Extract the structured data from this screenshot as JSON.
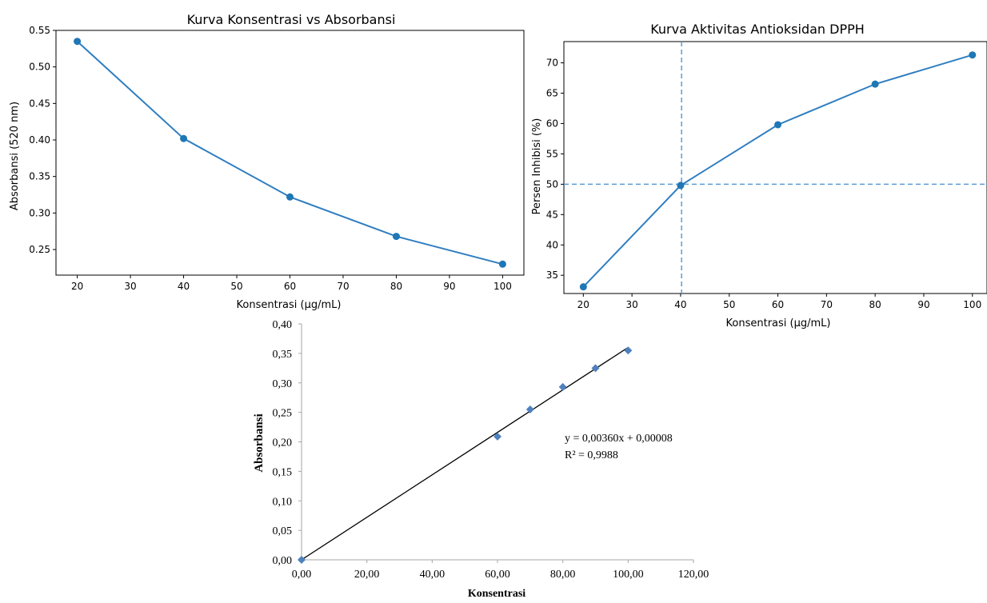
{
  "chart_data": [
    {
      "type": "line",
      "title": "Kurva Konsentrasi vs Absorbansi",
      "xlabel": "Konsentrasi (µg/mL)",
      "ylabel": "Absorbansi (520 nm)",
      "xlim": [
        16,
        104
      ],
      "ylim": [
        0.215,
        0.55
      ],
      "xticks": [
        20,
        30,
        40,
        50,
        60,
        70,
        80,
        90,
        100
      ],
      "yticks": [
        0.25,
        0.3,
        0.35,
        0.4,
        0.45,
        0.5,
        0.55
      ],
      "xtick_labels": [
        "20",
        "30",
        "40",
        "50",
        "60",
        "70",
        "80",
        "90",
        "100"
      ],
      "ytick_labels": [
        "0.25",
        "0.30",
        "0.35",
        "0.40",
        "0.45",
        "0.50",
        "0.55"
      ],
      "grid": false,
      "color": "#2f7ec1",
      "marker_color": "#1f77b4",
      "x": [
        20,
        40,
        60,
        80,
        100
      ],
      "y": [
        0.535,
        0.402,
        0.322,
        0.268,
        0.23
      ]
    },
    {
      "type": "line",
      "title": "Kurva Aktivitas Antioksidan DPPH",
      "xlabel": "Konsentrasi (µg/mL)",
      "ylabel": "Persen Inhibisi (%)",
      "xlim": [
        16,
        103
      ],
      "ylim": [
        32,
        73.5
      ],
      "xticks": [
        20,
        30,
        40,
        50,
        60,
        70,
        80,
        90,
        100
      ],
      "yticks": [
        35,
        40,
        45,
        50,
        55,
        60,
        65,
        70
      ],
      "xtick_labels": [
        "20",
        "30",
        "40",
        "50",
        "60",
        "70",
        "80",
        "90",
        "100"
      ],
      "ytick_labels": [
        "35",
        "40",
        "45",
        "50",
        "55",
        "60",
        "65",
        "70"
      ],
      "grid": false,
      "color": "#2f7ec1",
      "marker_color": "#1f77b4",
      "x": [
        20,
        40,
        60,
        80,
        100
      ],
      "y": [
        33.1,
        49.8,
        59.8,
        66.5,
        71.3
      ],
      "reference_lines": {
        "horizontal_y": 50,
        "vertical_x": 40.2,
        "style": "dashed",
        "color": "#5b9bd5"
      }
    },
    {
      "type": "scatter",
      "title": "",
      "xlabel": "Konsentrasi",
      "ylabel": "Absorbansi",
      "xlim": [
        0,
        120
      ],
      "ylim": [
        0,
        0.4
      ],
      "xticks": [
        0,
        20,
        40,
        60,
        80,
        100,
        120
      ],
      "yticks": [
        0,
        0.05,
        0.1,
        0.15,
        0.2,
        0.25,
        0.3,
        0.35,
        0.4
      ],
      "xtick_labels": [
        "0,00",
        "20,00",
        "40,00",
        "60,00",
        "80,00",
        "100,00",
        "120,00"
      ],
      "ytick_labels": [
        "0,00",
        "0,05",
        "0,10",
        "0,15",
        "0,20",
        "0,25",
        "0,30",
        "0,35",
        "0,40"
      ],
      "grid": false,
      "marker": "diamond",
      "marker_color": "#4f81bd",
      "x": [
        0,
        60,
        70,
        80,
        90,
        100
      ],
      "y": [
        0.0,
        0.209,
        0.255,
        0.293,
        0.325,
        0.355
      ],
      "trendline": {
        "slope": 0.0036,
        "intercept": 8e-05,
        "x_range": [
          0,
          100
        ],
        "color": "#000000"
      },
      "annotations": [
        "y = 0,00360x + 0,00008",
        "R² = 0,9988"
      ]
    }
  ]
}
